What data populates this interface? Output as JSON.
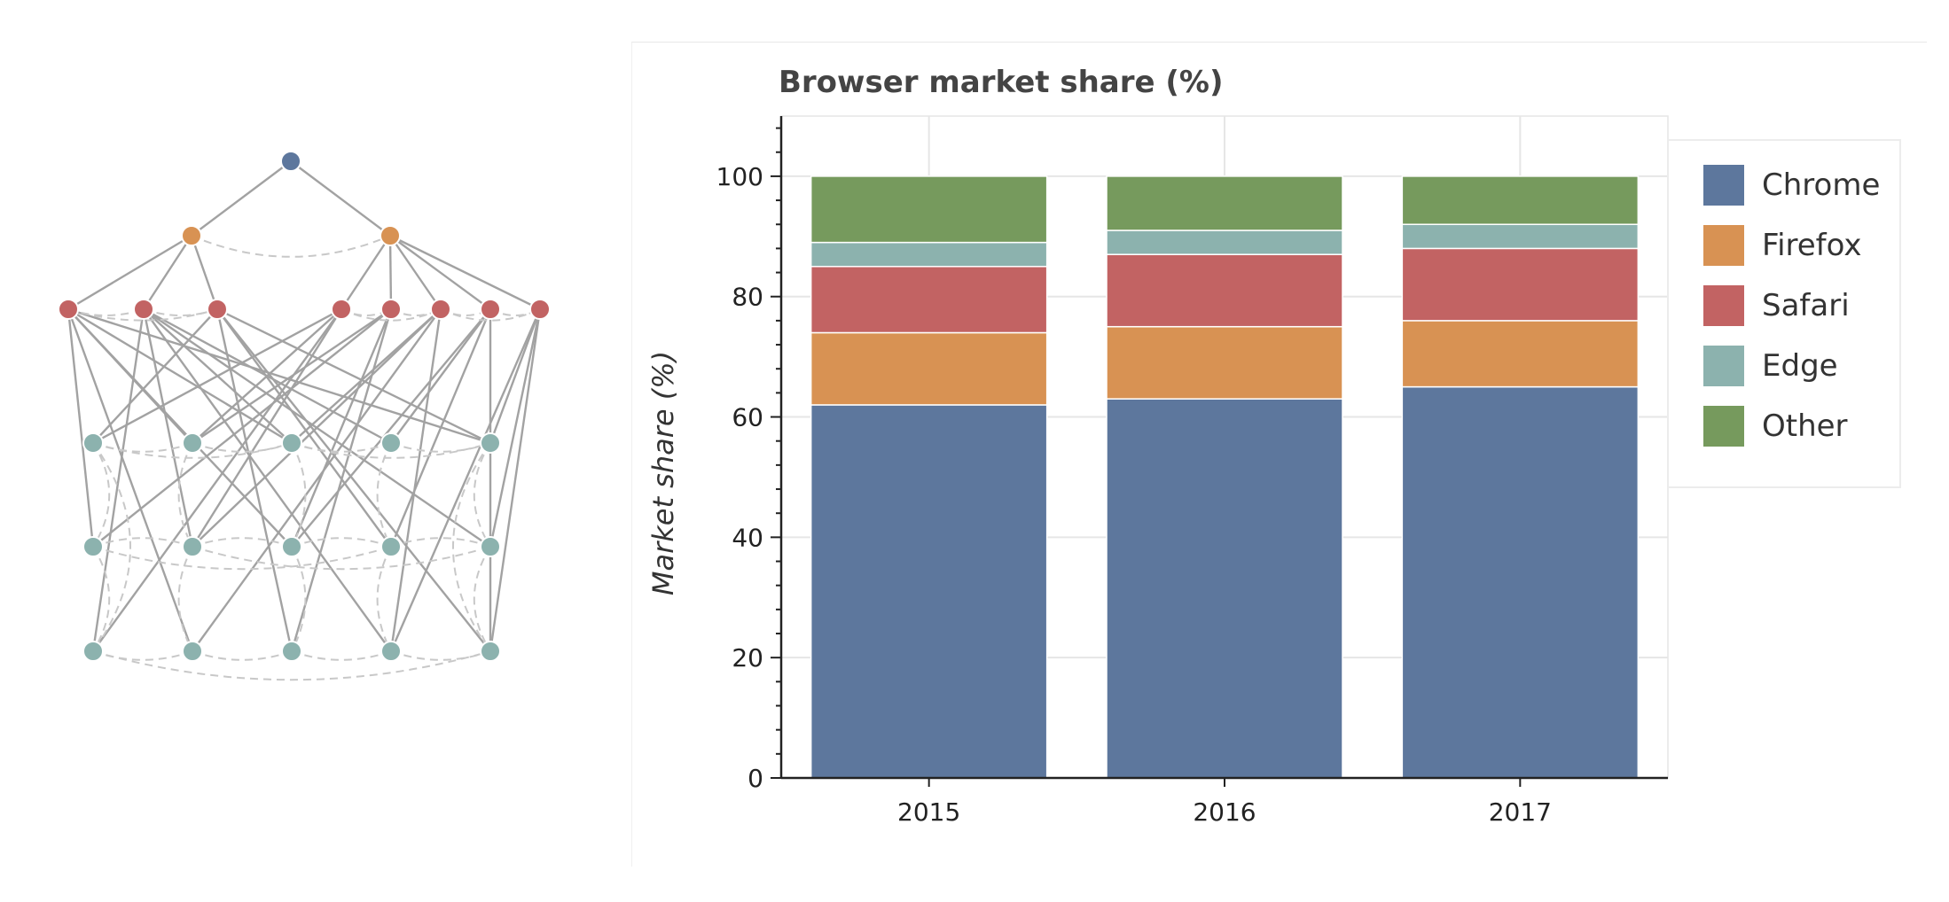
{
  "palette": {
    "blue": "#5d779d",
    "orange": "#d89253",
    "red": "#c26363",
    "teal": "#8cb2ae",
    "green": "#769a5d",
    "solid_edge": "#a2a2a2",
    "dashed_edge": "#c8c8c8"
  },
  "network": {
    "levels": [
      {
        "color": "blue",
        "nodes": 1
      },
      {
        "color": "orange",
        "nodes": 2
      },
      {
        "color": "red",
        "nodes": 8
      },
      {
        "color": "teal",
        "nodes": 5
      },
      {
        "color": "teal",
        "nodes": 5
      },
      {
        "color": "teal",
        "nodes": 5
      }
    ]
  },
  "chart_data": {
    "type": "bar",
    "stacked": true,
    "title": "Browser market share (%)",
    "xlabel": "",
    "ylabel": "Market share (%)",
    "categories": [
      "2015",
      "2016",
      "2017"
    ],
    "ylim": [
      0,
      110
    ],
    "yticks": [
      0,
      20,
      40,
      60,
      80,
      100
    ],
    "ytick_labels": [
      "0",
      "20",
      "40",
      "60",
      "80",
      "100"
    ],
    "grid": true,
    "legend_position": "right",
    "series": [
      {
        "name": "Chrome",
        "color": "#5d779d",
        "values": [
          62,
          63,
          65
        ]
      },
      {
        "name": "Firefox",
        "color": "#d89253",
        "values": [
          12,
          12,
          11
        ]
      },
      {
        "name": "Safari",
        "color": "#c26363",
        "values": [
          11,
          12,
          12
        ]
      },
      {
        "name": "Edge",
        "color": "#8cb2ae",
        "values": [
          4,
          4,
          4
        ]
      },
      {
        "name": "Other",
        "color": "#769a5d",
        "values": [
          11,
          9,
          8
        ]
      }
    ]
  }
}
